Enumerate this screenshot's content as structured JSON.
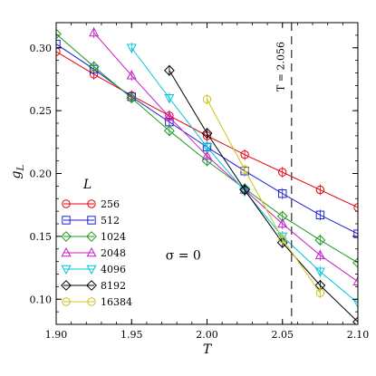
{
  "chart_data": {
    "type": "line",
    "title": "",
    "xlabel": "T",
    "ylabel": "g",
    "ylabel_sub": "L",
    "xlim": [
      1.9,
      2.1
    ],
    "ylim": [
      0.08,
      0.32
    ],
    "xticks": [
      1.9,
      1.95,
      2.0,
      2.05,
      2.1
    ],
    "xtick_labels": [
      "1.90",
      "1.95",
      "2.00",
      "2.05",
      "2.10"
    ],
    "yticks": [
      0.1,
      0.15,
      0.2,
      0.25,
      0.3
    ],
    "ytick_labels": [
      "0.10",
      "0.15",
      "0.20",
      "0.25",
      "0.30"
    ],
    "grid": false,
    "legend_title": "L",
    "legend_position": "lower-left",
    "annotations": {
      "vline_x": 2.056,
      "vline_label": "T = 2.056",
      "sigma_label": "σ = 0"
    },
    "series": [
      {
        "name": "256",
        "color": "#e8000b",
        "marker": "circle",
        "x": [
          1.9,
          1.925,
          1.95,
          1.975,
          2.0,
          2.025,
          2.05,
          2.075,
          2.1
        ],
        "y": [
          0.297,
          0.279,
          0.262,
          0.246,
          0.23,
          0.215,
          0.201,
          0.187,
          0.173
        ]
      },
      {
        "name": "512",
        "color": "#1f1fd6",
        "marker": "square",
        "x": [
          1.9,
          1.925,
          1.95,
          1.975,
          2.0,
          2.025,
          2.05,
          2.075,
          2.1
        ],
        "y": [
          0.303,
          0.283,
          0.261,
          0.241,
          0.221,
          0.202,
          0.184,
          0.167,
          0.152
        ]
      },
      {
        "name": "1024",
        "color": "#1f9a1f",
        "marker": "diamond",
        "x": [
          1.9,
          1.925,
          1.95,
          1.975,
          2.0,
          2.025,
          2.05,
          2.075,
          2.1
        ],
        "y": [
          0.311,
          0.285,
          0.26,
          0.234,
          0.21,
          0.188,
          0.166,
          0.147,
          0.129
        ]
      },
      {
        "name": "2048",
        "color": "#c41fc4",
        "marker": "triangle-up",
        "x": [
          1.925,
          1.95,
          1.975,
          2.0,
          2.025,
          2.05,
          2.075,
          2.1
        ],
        "y": [
          0.312,
          0.278,
          0.245,
          0.214,
          0.187,
          0.16,
          0.135,
          0.114
        ]
      },
      {
        "name": "4096",
        "color": "#00c5d6",
        "marker": "triangle-down",
        "x": [
          1.95,
          1.975,
          2.0,
          2.025,
          2.05,
          2.075,
          2.1
        ],
        "y": [
          0.3,
          0.26,
          0.221,
          0.186,
          0.15,
          0.122,
          0.097
        ]
      },
      {
        "name": "8192",
        "color": "#000000",
        "marker": "diamond",
        "x": [
          1.975,
          2.0,
          2.025,
          2.05,
          2.075,
          2.1
        ],
        "y": [
          0.282,
          0.232,
          0.187,
          0.145,
          0.111,
          0.082
        ]
      },
      {
        "name": "16384",
        "color": "#c9c41a",
        "marker": "circle",
        "x": [
          2.0,
          2.025,
          2.05,
          2.075
        ],
        "y": [
          0.259,
          0.203,
          0.148,
          0.105
        ]
      }
    ]
  }
}
